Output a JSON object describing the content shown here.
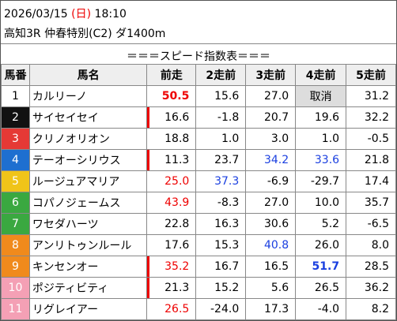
{
  "header": {
    "date": "2026/03/15",
    "weekday": "(日)",
    "time": "18:10",
    "race": "高知3R 仲春特別(C2) ダ1400m"
  },
  "table": {
    "title": "＝＝＝スピード指数表＝＝＝",
    "columns": [
      "馬番",
      "馬名",
      "前走",
      "2走前",
      "3走前",
      "4走前",
      "5走前"
    ],
    "rows": [
      [
        "1",
        "カルリーノ",
        "50.5",
        "15.6",
        "27.0",
        "取消",
        "31.2"
      ],
      [
        "2",
        "サイセイセイ",
        "16.6",
        "-1.8",
        "20.7",
        "19.6",
        "32.2"
      ],
      [
        "3",
        "クリノオリオン",
        "18.8",
        "1.0",
        "3.0",
        "1.0",
        "-0.5"
      ],
      [
        "4",
        "テーオーシリウス",
        "11.3",
        "23.7",
        "34.2",
        "33.6",
        "21.8"
      ],
      [
        "5",
        "ルージュアマリア",
        "25.0",
        "37.3",
        "-6.9",
        "-29.7",
        "17.4"
      ],
      [
        "6",
        "コパノジェームス",
        "43.9",
        "-8.3",
        "27.0",
        "10.0",
        "35.7"
      ],
      [
        "7",
        "ワセダハーツ",
        "22.8",
        "16.3",
        "30.6",
        "5.2",
        "-6.5"
      ],
      [
        "8",
        "アンリトゥンルール",
        "17.6",
        "15.3",
        "40.8",
        "26.0",
        "8.0"
      ],
      [
        "9",
        "キンセンオー",
        "35.2",
        "16.7",
        "16.5",
        "51.7",
        "28.5"
      ],
      [
        "10",
        "ポジティビティ",
        "21.3",
        "15.2",
        "5.6",
        "26.5",
        "36.2"
      ],
      [
        "11",
        "リグレイアー",
        "26.5",
        "-24.0",
        "17.3",
        "-4.0",
        "8.2"
      ]
    ]
  }
}
